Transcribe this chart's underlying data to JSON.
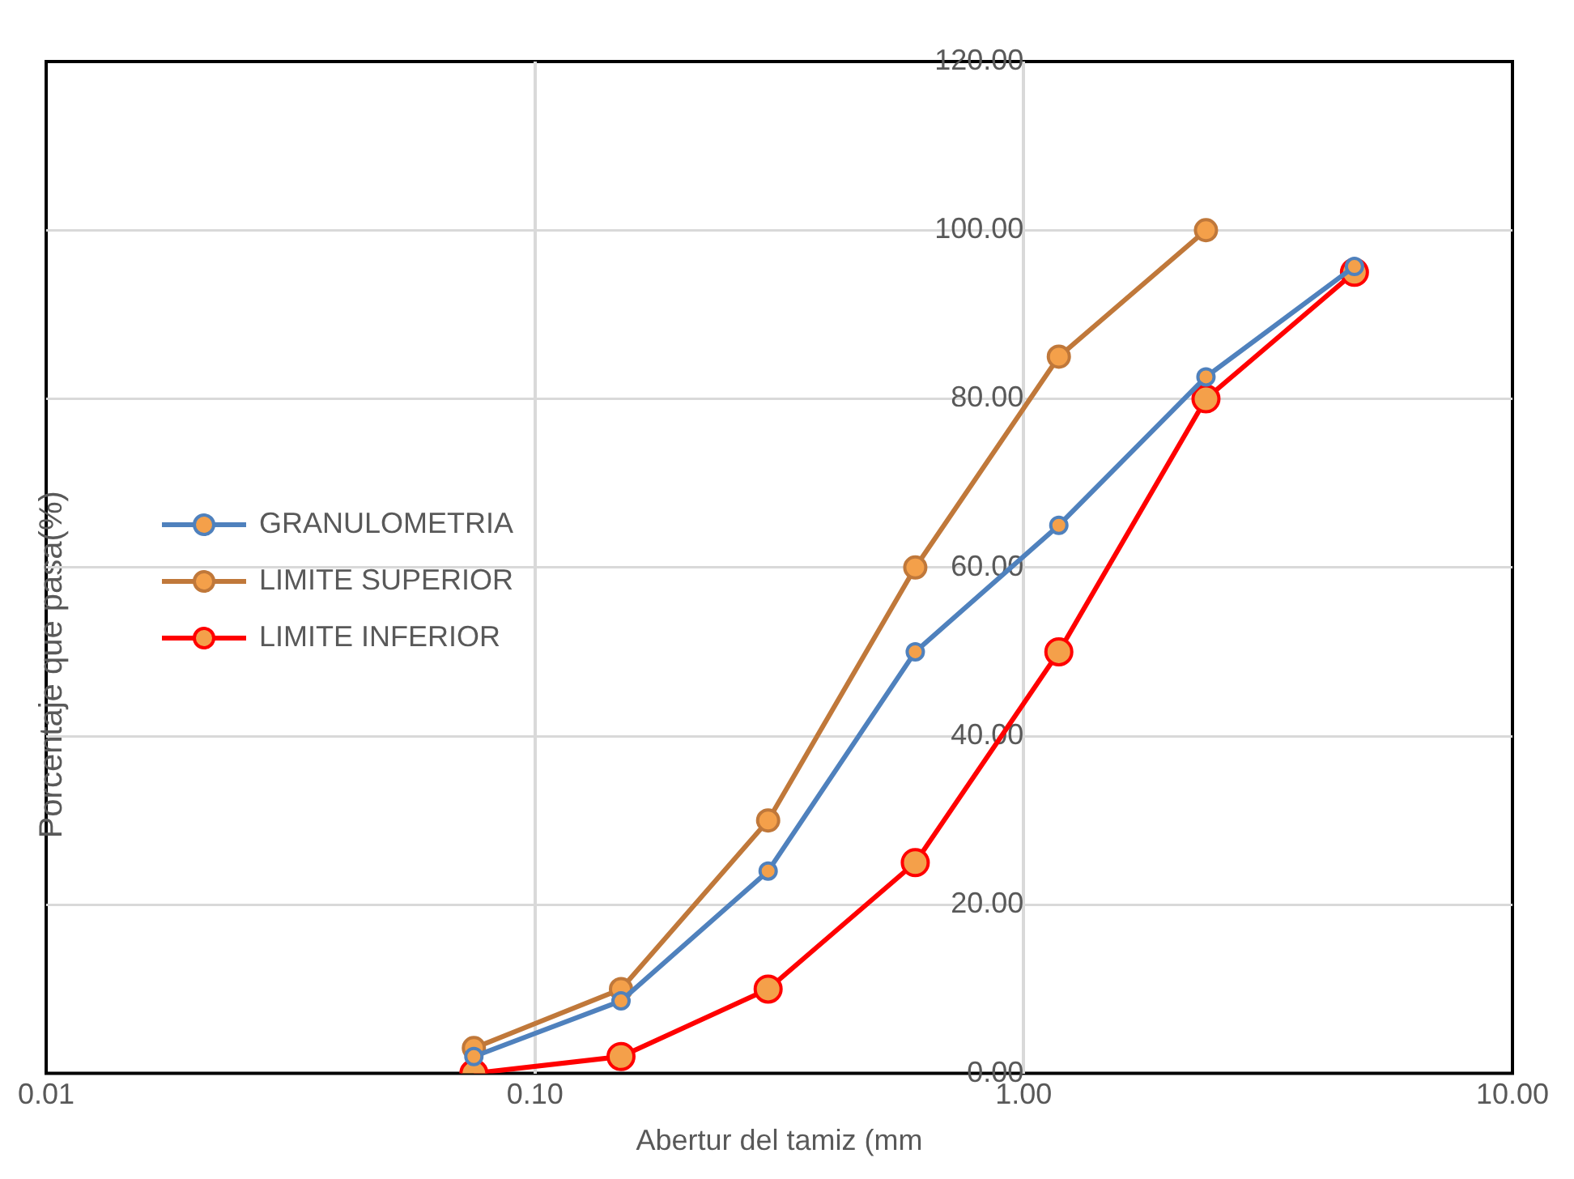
{
  "chart_data": {
    "type": "line",
    "xlabel": "Abertur del tamiz (mm",
    "ylabel": "Porcentaje que pasa(%)",
    "log": "x",
    "grid": true,
    "legend": "left",
    "marker": "circle",
    "line_style": "solid",
    "xlim": [
      0.01,
      10
    ],
    "xticks": [
      {
        "value": 0.01,
        "label": "0.01"
      },
      {
        "value": 0.1,
        "label": "0.10"
      },
      {
        "value": 1,
        "label": "1.00"
      },
      {
        "value": 10,
        "label": "10.00"
      }
    ],
    "ylim": [
      0,
      120
    ],
    "yticks": [
      {
        "value": 0,
        "label": "0.00"
      },
      {
        "value": 20,
        "label": "20.00"
      },
      {
        "value": 40,
        "label": "40.00"
      },
      {
        "value": 60,
        "label": "60.00"
      },
      {
        "value": 80,
        "label": "80.00"
      },
      {
        "value": 100,
        "label": "100.00"
      },
      {
        "value": 120,
        "label": "120.00"
      }
    ],
    "series": [
      {
        "name": "GRANULOMETRIA",
        "color": "#4f81bd",
        "x": [
          0.075,
          0.15,
          0.3,
          0.6,
          1.18,
          2.36,
          4.75
        ],
        "values": [
          2,
          8.6,
          24,
          50,
          65,
          82.6,
          95.7
        ]
      },
      {
        "name": "LIMITE SUPERIOR",
        "color": "#c0783a",
        "x": [
          0.075,
          0.15,
          0.3,
          0.6,
          1.18,
          2.36
        ],
        "values": [
          3,
          10,
          30,
          60,
          85,
          100
        ]
      },
      {
        "name": "LIMITE INFERIOR",
        "color": "#ff0000",
        "x": [
          0.075,
          0.15,
          0.3,
          0.6,
          1.18,
          2.36,
          4.75
        ],
        "values": [
          0,
          2,
          10,
          25,
          50,
          80,
          95
        ]
      }
    ]
  }
}
